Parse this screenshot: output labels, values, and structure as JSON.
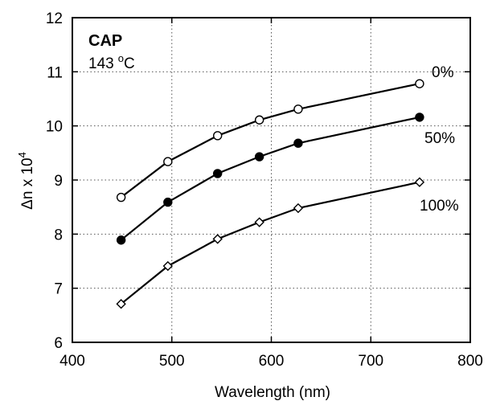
{
  "chart_data": {
    "type": "line",
    "xlabel": "Wavelength (nm)",
    "ylabel_main": "Δn x 10",
    "ylabel_exp": "4",
    "xlim": [
      400,
      800
    ],
    "ylim": [
      6,
      12
    ],
    "x_ticks": [
      400,
      500,
      600,
      700,
      800
    ],
    "y_ticks": [
      6,
      7,
      8,
      9,
      10,
      11,
      12
    ],
    "grid": true,
    "annotations": {
      "material": "CAP",
      "temperature": "143",
      "temperature_unit_sup": "o",
      "temperature_unit": "C"
    },
    "series": [
      {
        "name": "0%",
        "marker": "open-circle",
        "x": [
          449,
          496,
          546,
          588,
          627,
          749
        ],
        "y": [
          8.68,
          9.34,
          9.82,
          10.11,
          10.31,
          10.78
        ]
      },
      {
        "name": "50%",
        "marker": "filled-circle",
        "x": [
          449,
          496,
          546,
          588,
          627,
          749
        ],
        "y": [
          7.89,
          8.59,
          9.12,
          9.43,
          9.68,
          10.16
        ]
      },
      {
        "name": "100%",
        "marker": "open-diamond",
        "x": [
          449,
          496,
          546,
          588,
          627,
          749
        ],
        "y": [
          6.71,
          7.41,
          7.91,
          8.22,
          8.48,
          8.96
        ]
      }
    ]
  }
}
